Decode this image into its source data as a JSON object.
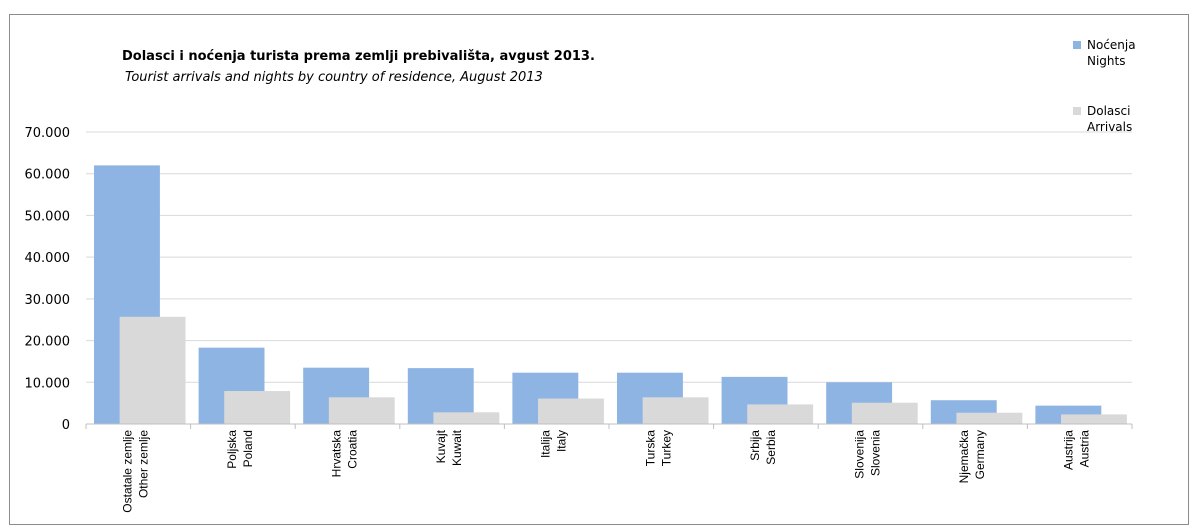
{
  "chart_data": {
    "type": "bar",
    "title": "Dolasci i noćenja turista prema zemlji prebivališta,  avgust 2013.",
    "subtitle": "Tourist arrivals and nights by country of residence,  August 2013",
    "categories": [
      [
        "Ostatale zemlje",
        "Other zemlje"
      ],
      [
        "Poljska",
        "Poland"
      ],
      [
        "Hrvatska",
        "Croatia"
      ],
      [
        "Kuvajt",
        "Kuwait"
      ],
      [
        "Italija",
        "Italy"
      ],
      [
        "Turska",
        "Turkey"
      ],
      [
        "Srbija",
        "Serbia"
      ],
      [
        "Slovenija",
        "Slovenia"
      ],
      [
        "Njemačka",
        "Germany"
      ],
      [
        "Austrija",
        "Austria"
      ]
    ],
    "series": [
      {
        "name": [
          "Noćenja",
          "Nights"
        ],
        "color": "#8eb4e3",
        "values": [
          62000,
          18300,
          13500,
          13400,
          12300,
          12300,
          11300,
          10000,
          5700,
          4400
        ]
      },
      {
        "name": [
          "Dolasci",
          "Arrivals"
        ],
        "color": "#d9d9d9",
        "values": [
          25700,
          7900,
          6400,
          2800,
          6100,
          6400,
          4700,
          5100,
          2700,
          2300
        ]
      }
    ],
    "yticks": [
      "0",
      "10.000",
      "20.000",
      "30.000",
      "40.000",
      "50.000",
      "60.000",
      "70.000"
    ],
    "ylim": [
      0,
      70000
    ],
    "grid": true,
    "legend_position": "top-right"
  }
}
